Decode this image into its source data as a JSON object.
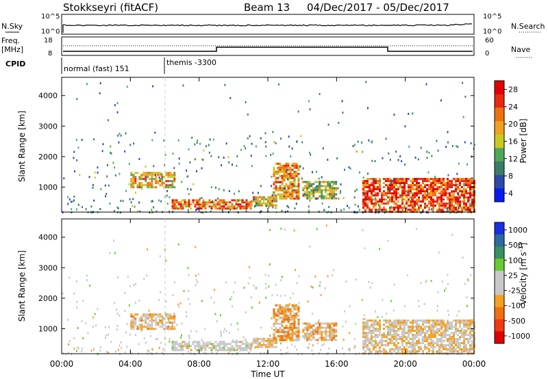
{
  "header": {
    "station": "Stokkseyri (fitACF)",
    "beam_label": "Beam 13",
    "date_range": "04/Dec/2017 - 05/Dec/2017"
  },
  "noise_panel": {
    "left_label": "N.Sky",
    "left_ticks": [
      "10^5",
      "10^0"
    ],
    "right_label": "N.Search",
    "right_ticks": [
      "10^5",
      "10^0"
    ]
  },
  "freq_panel": {
    "left_label_1": "Freq.",
    "left_label_2": "[MHz]",
    "left_ticks": [
      "18",
      "8"
    ],
    "right_label": "Nave",
    "right_ticks": [
      "60",
      "0"
    ],
    "cpid_label": "CPID",
    "modes": [
      "normal (fast) 151",
      "themis -3300"
    ]
  },
  "colors": {
    "power_scale": [
      "#0a1cf0",
      "#2e4aa8",
      "#3a7d66",
      "#4fa85a",
      "#c9c920",
      "#f0a020",
      "#f07010",
      "#e82a10",
      "#e00000"
    ],
    "velocity_scale": [
      "#e00000",
      "#f03a10",
      "#f07010",
      "#f5a020",
      "#c8c8c8",
      "#c8c8c8",
      "#66cc33",
      "#3a9060",
      "#2e6aa0",
      "#1a30e0"
    ]
  },
  "chart_data": [
    {
      "type": "heatmap",
      "name": "power",
      "xlabel": "Time UT",
      "ylabel": "Slant Range [km]",
      "x_ticks": [
        "00:00",
        "04:00",
        "08:00",
        "12:00",
        "16:00",
        "20:00",
        "00:00"
      ],
      "xlim": [
        0,
        24
      ],
      "y_ticks": [
        "1000",
        "2000",
        "3000",
        "4000"
      ],
      "ylim": [
        180,
        4600
      ],
      "colorbar_label": "Power [dB]",
      "colorbar_ticks": [
        "28",
        "24",
        "20",
        "16",
        "12",
        "8",
        "4"
      ],
      "colorbar_range": [
        0,
        30
      ],
      "features": [
        {
          "t0": 4.0,
          "t1": 6.6,
          "r0": 1000,
          "r1": 1500,
          "value": 18
        },
        {
          "t0": 6.4,
          "t1": 11.0,
          "r0": 300,
          "r1": 600,
          "value": 22
        },
        {
          "t0": 11.0,
          "t1": 12.5,
          "r0": 400,
          "r1": 700,
          "value": 18
        },
        {
          "t0": 12.3,
          "t1": 13.8,
          "r0": 600,
          "r1": 1800,
          "value": 20
        },
        {
          "t0": 14.0,
          "t1": 16.0,
          "r0": 600,
          "r1": 1200,
          "value": 14
        },
        {
          "t0": 17.5,
          "t1": 24.0,
          "r0": 200,
          "r1": 1300,
          "value": 24
        }
      ]
    },
    {
      "type": "heatmap",
      "name": "velocity",
      "xlabel": "Time UT",
      "ylabel": "Slant Range [km]",
      "x_ticks": [
        "00:00",
        "04:00",
        "08:00",
        "12:00",
        "16:00",
        "20:00",
        "00:00"
      ],
      "xlim": [
        0,
        24
      ],
      "y_ticks": [
        "1000",
        "2000",
        "3000",
        "4000"
      ],
      "ylim": [
        180,
        4600
      ],
      "colorbar_label": "Velocity [m s^-1]",
      "colorbar_ticks": [
        "1000",
        "500",
        "100",
        "25",
        "-25",
        "-100",
        "-500",
        "-1000"
      ],
      "colorbar_range": [
        -1000,
        1000
      ],
      "features": [
        {
          "t0": 4.0,
          "t1": 6.6,
          "r0": 1000,
          "r1": 1500,
          "value": -200
        },
        {
          "t0": 6.4,
          "t1": 11.0,
          "r0": 300,
          "r1": 600,
          "value": 0
        },
        {
          "t0": 11.0,
          "t1": 12.5,
          "r0": 400,
          "r1": 700,
          "value": -150
        },
        {
          "t0": 12.3,
          "t1": 13.8,
          "r0": 600,
          "r1": 1800,
          "value": -300
        },
        {
          "t0": 14.0,
          "t1": 16.0,
          "r0": 600,
          "r1": 1200,
          "value": -250
        },
        {
          "t0": 17.5,
          "t1": 24.0,
          "r0": 200,
          "r1": 1300,
          "value": -150
        }
      ]
    }
  ]
}
